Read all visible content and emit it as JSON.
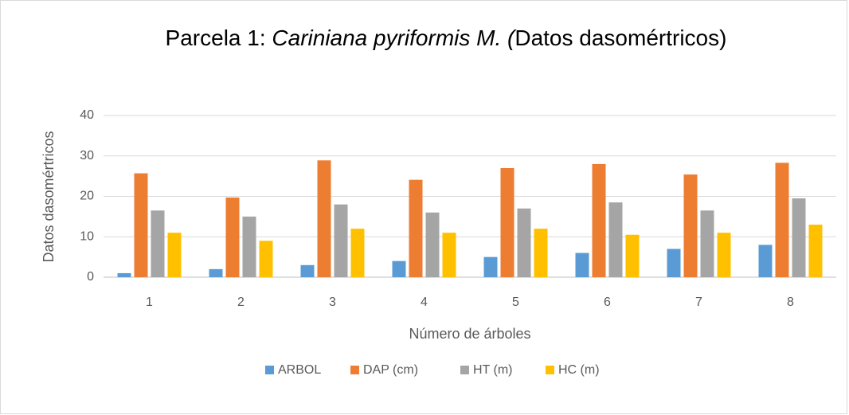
{
  "chart_data": {
    "type": "bar",
    "title": [
      {
        "text": "Parcela 1: "
      },
      {
        "text": "Cariniana pyriformis M. (",
        "italic": true
      },
      {
        "text": "Datos dasomértricos)"
      }
    ],
    "x_label": "Número de árboles",
    "y_label": "Datos dasomértricos",
    "categories": [
      "1",
      "2",
      "3",
      "4",
      "5",
      "6",
      "7",
      "8"
    ],
    "series": [
      {
        "name": "ARBOL",
        "color": "#5b9bd5",
        "values": [
          1,
          2,
          3,
          4,
          5,
          6,
          7,
          8
        ]
      },
      {
        "name": "DAP (cm)",
        "color": "#ed7d31",
        "values": [
          25.7,
          19.7,
          28.9,
          24.1,
          27,
          28,
          25.4,
          28.3
        ]
      },
      {
        "name": "HT (m)",
        "color": "#a5a5a5",
        "values": [
          16.5,
          15,
          18,
          16,
          17,
          18.5,
          16.5,
          19.5
        ]
      },
      {
        "name": "HC (m)",
        "color": "#ffc000",
        "values": [
          11,
          9,
          12,
          11,
          12,
          10.5,
          11,
          13
        ]
      }
    ],
    "ylim": [
      0,
      40
    ],
    "yticks": [
      0,
      10,
      20,
      30,
      40
    ],
    "grid": true,
    "legend": "bottom"
  }
}
